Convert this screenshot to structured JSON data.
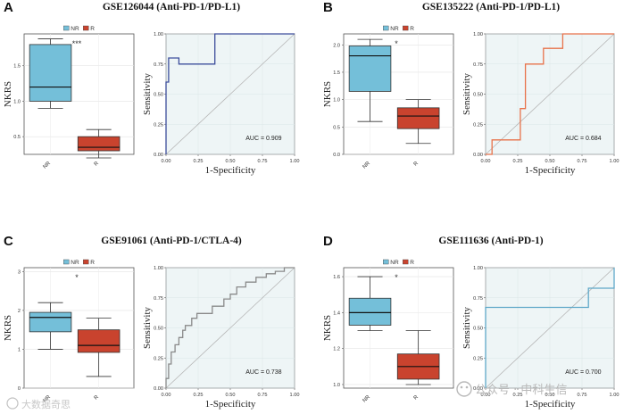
{
  "colors": {
    "nr": "#74bfd9",
    "r": "#c9432e",
    "roc_a": "#3d4e9c",
    "roc_b": "#e8724a",
    "roc_c": "#8a8a8a",
    "roc_d": "#5fa8c8",
    "roc_bg": "#eef5f6"
  },
  "chart_data": [
    {
      "letter": "A",
      "title": "GSE126044 (Anti-PD-1/PD-L1)",
      "box": {
        "type": "box",
        "ylabel": "NKRS",
        "ylim": [
          0.25,
          1.95
        ],
        "yticks": [
          0.5,
          1.0,
          1.5
        ],
        "significance": "***",
        "legend": [
          "NR",
          "R"
        ],
        "groups": [
          {
            "name": "NR",
            "min": 0.9,
            "q1": 1.0,
            "median": 1.2,
            "q3": 1.8,
            "max": 1.88
          },
          {
            "name": "R",
            "min": 0.2,
            "q1": 0.3,
            "median": 0.35,
            "q3": 0.5,
            "max": 0.6
          }
        ]
      },
      "roc": {
        "type": "line",
        "xlabel": "1-Specificity",
        "ylabel": "Sensitivity",
        "auc": "AUC = 0.909",
        "xticks": [
          0,
          0.25,
          0.5,
          0.75,
          1
        ],
        "yticks": [
          0,
          0.25,
          0.5,
          0.75,
          1
        ],
        "x": [
          0,
          0,
          0.02,
          0.02,
          0.1,
          0.1,
          0.38,
          0.38,
          1
        ],
        "y": [
          0,
          0.6,
          0.6,
          0.8,
          0.8,
          0.75,
          0.75,
          1,
          1
        ]
      }
    },
    {
      "letter": "B",
      "title": "GSE135222 (Anti-PD-1/PD-L1)",
      "box": {
        "type": "box",
        "ylabel": "NKRS",
        "ylim": [
          0.0,
          2.2
        ],
        "yticks": [
          0.0,
          0.5,
          1.0,
          1.5,
          2.0
        ],
        "significance": "*",
        "legend": [
          "NR",
          "R"
        ],
        "groups": [
          {
            "name": "NR",
            "min": 0.6,
            "q1": 1.15,
            "median": 1.8,
            "q3": 1.98,
            "max": 2.1
          },
          {
            "name": "R",
            "min": 0.2,
            "q1": 0.47,
            "median": 0.7,
            "q3": 0.85,
            "max": 1.0
          }
        ]
      },
      "roc": {
        "type": "line",
        "xlabel": "1-Specificity",
        "ylabel": "Sensitivity",
        "auc": "AUC = 0.684",
        "xticks": [
          0,
          0.25,
          0.5,
          0.75,
          1
        ],
        "yticks": [
          0,
          0.25,
          0.5,
          0.75,
          1
        ],
        "x": [
          0,
          0.05,
          0.05,
          0.27,
          0.27,
          0.31,
          0.31,
          0.45,
          0.45,
          0.6,
          0.6,
          1
        ],
        "y": [
          0,
          0,
          0.12,
          0.12,
          0.38,
          0.38,
          0.75,
          0.75,
          0.88,
          0.88,
          1,
          1
        ]
      }
    },
    {
      "letter": "C",
      "title": "GSE91061 (Anti-PD-1/CTLA-4)",
      "box": {
        "type": "box",
        "ylabel": "NKRS",
        "ylim": [
          0.0,
          3.1
        ],
        "yticks": [
          0,
          1,
          2,
          3
        ],
        "significance": "*",
        "legend": [
          "NR",
          "R"
        ],
        "groups": [
          {
            "name": "NR",
            "min": 1.0,
            "q1": 1.45,
            "median": 1.82,
            "q3": 1.95,
            "max": 2.2
          },
          {
            "name": "R",
            "min": 0.3,
            "q1": 0.92,
            "median": 1.1,
            "q3": 1.5,
            "max": 1.8
          }
        ]
      },
      "roc": {
        "type": "line",
        "xlabel": "1-Specificity",
        "ylabel": "Sensitivity",
        "auc": "AUC = 0.738",
        "xticks": [
          0,
          0.25,
          0.5,
          0.75,
          1
        ],
        "yticks": [
          0,
          0.25,
          0.5,
          0.75,
          1
        ],
        "x": [
          0,
          0,
          0.02,
          0.02,
          0.04,
          0.04,
          0.07,
          0.07,
          0.1,
          0.1,
          0.13,
          0.13,
          0.15,
          0.15,
          0.2,
          0.2,
          0.24,
          0.24,
          0.3,
          0.3,
          0.36,
          0.36,
          0.45,
          0.45,
          0.5,
          0.5,
          0.55,
          0.55,
          0.62,
          0.62,
          0.7,
          0.7,
          0.78,
          0.78,
          0.85,
          0.85,
          0.92,
          0.92,
          1
        ],
        "y": [
          0,
          0.08,
          0.08,
          0.2,
          0.2,
          0.3,
          0.3,
          0.36,
          0.36,
          0.42,
          0.42,
          0.48,
          0.48,
          0.52,
          0.52,
          0.58,
          0.58,
          0.62,
          0.62,
          0.62,
          0.62,
          0.68,
          0.68,
          0.74,
          0.74,
          0.78,
          0.78,
          0.84,
          0.84,
          0.88,
          0.88,
          0.92,
          0.92,
          0.95,
          0.95,
          0.97,
          0.97,
          1,
          1
        ]
      }
    },
    {
      "letter": "D",
      "title": "GSE111636 (Anti-PD-1)",
      "box": {
        "type": "box",
        "ylabel": "NKRS",
        "ylim": [
          0.98,
          1.65
        ],
        "yticks": [
          1.0,
          1.2,
          1.4,
          1.6
        ],
        "significance": "*",
        "legend": [
          "NR",
          "R"
        ],
        "groups": [
          {
            "name": "NR",
            "min": 1.3,
            "q1": 1.33,
            "median": 1.4,
            "q3": 1.48,
            "max": 1.6
          },
          {
            "name": "R",
            "min": 1.0,
            "q1": 1.03,
            "median": 1.1,
            "q3": 1.17,
            "max": 1.3
          }
        ]
      },
      "roc": {
        "type": "line",
        "xlabel": "1-Specificity",
        "ylabel": "Sensitivity",
        "auc": "AUC = 0.700",
        "xticks": [
          0,
          0.25,
          0.5,
          0.75,
          1
        ],
        "yticks": [
          0,
          0.25,
          0.5,
          0.75,
          1
        ],
        "x": [
          0,
          0,
          0.8,
          0.8,
          1,
          1
        ],
        "y": [
          0,
          0.67,
          0.67,
          0.83,
          0.83,
          1
        ]
      }
    }
  ],
  "watermarks": {
    "left": "大数据奇思",
    "right": "公众号 · 中科生信"
  }
}
